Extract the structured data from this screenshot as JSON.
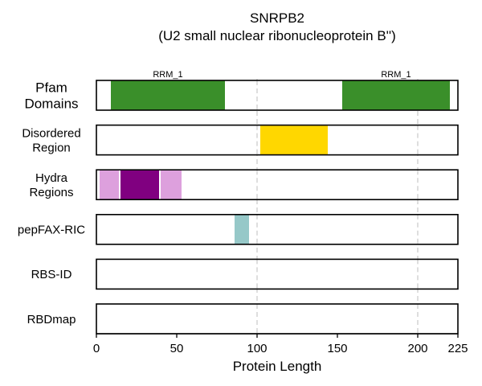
{
  "chart_data": {
    "type": "bar",
    "title": "SNRPB2",
    "subtitle": "(U2 small nuclear ribonucleoprotein B'')",
    "xlabel": "Protein Length",
    "ylabel": "",
    "xlim": [
      0,
      225
    ],
    "xticks": [
      0,
      50,
      100,
      150,
      200,
      225
    ],
    "grid_x": [
      100,
      200
    ],
    "grid": "vertical dashed at 100 and 200",
    "tracks": [
      {
        "label": "Pfam\nDomains",
        "segments": [
          {
            "start": 9,
            "end": 80,
            "color": "#3a8f2a",
            "label": "RRM_1"
          },
          {
            "start": 153,
            "end": 220,
            "color": "#3a8f2a",
            "label": "RRM_1"
          }
        ]
      },
      {
        "label": "Disordered\nRegion",
        "segments": [
          {
            "start": 102,
            "end": 144,
            "color": "#ffd700"
          }
        ]
      },
      {
        "label": "Hydra\nRegions",
        "segments": [
          {
            "start": 2,
            "end": 14,
            "color": "#dda0dd"
          },
          {
            "start": 15,
            "end": 39,
            "color": "#800080"
          },
          {
            "start": 40,
            "end": 53,
            "color": "#dda0dd"
          }
        ]
      },
      {
        "label": "pepFAX-RIC",
        "segments": [
          {
            "start": 86,
            "end": 95,
            "color": "#96c8c8"
          }
        ]
      },
      {
        "label": "RBS-ID",
        "segments": []
      },
      {
        "label": "RBDmap",
        "segments": []
      }
    ]
  }
}
